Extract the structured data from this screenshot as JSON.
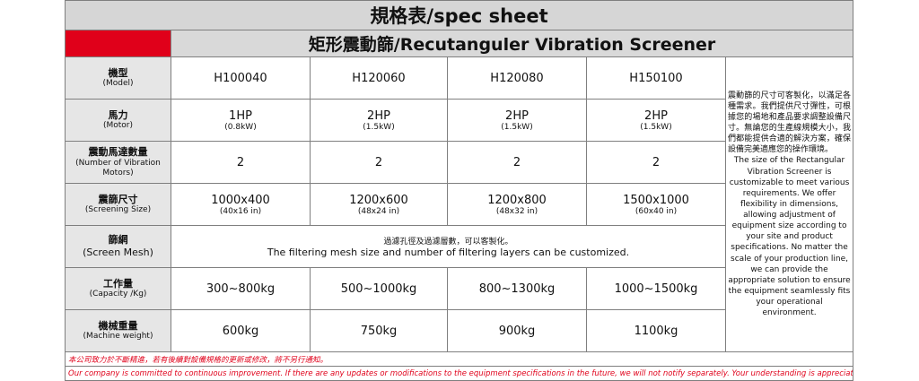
{
  "header": {
    "title": "規格表/spec sheet",
    "subtitle": "矩形震動篩/Recutanguler Vibration Screener"
  },
  "rows": [
    {
      "label": "機型",
      "label_en": "(Model)",
      "cells": [
        {
          "main": "H100040"
        },
        {
          "main": "H120060"
        },
        {
          "main": "H120080"
        },
        {
          "main": "H150100"
        }
      ]
    },
    {
      "label": "馬力",
      "label_en": "(Motor)",
      "cells": [
        {
          "main": "1HP",
          "sub": "(0.8kW)"
        },
        {
          "main": "2HP",
          "sub": "(1.5kW)"
        },
        {
          "main": "2HP",
          "sub": "(1.5kW)"
        },
        {
          "main": "2HP",
          "sub": "(1.5kW)"
        }
      ]
    },
    {
      "label": "震動馬達數量",
      "label_en": "(Number of Vibration Motors)",
      "cells": [
        {
          "main": "2"
        },
        {
          "main": "2"
        },
        {
          "main": "2"
        },
        {
          "main": "2"
        }
      ]
    },
    {
      "label": "震篩尺寸",
      "label_en": "(Screening Size)",
      "cells": [
        {
          "main": "1000x400",
          "sub": "(40x16 in)"
        },
        {
          "main": "1200x600",
          "sub": "(48x24 in)"
        },
        {
          "main": "1200x800",
          "sub": "(48x32 in)"
        },
        {
          "main": "1500x1000",
          "sub": "(60x40 in)"
        }
      ]
    },
    {
      "label": "篩網",
      "label_en": "(Screen Mesh)",
      "merged": {
        "main": "過濾孔徑及過濾層數，可以客製化。",
        "sub": "The filtering mesh size and number of filtering layers can be customized."
      }
    },
    {
      "label": "工作量",
      "label_en": "(Capacity /Kg)",
      "cells": [
        {
          "main": "300~800kg"
        },
        {
          "main": "500~1000kg"
        },
        {
          "main": "800~1300kg"
        },
        {
          "main": "1000~1500kg"
        }
      ]
    },
    {
      "label": "機械重量",
      "label_en": "(Machine weight)",
      "cells": [
        {
          "main": "600kg"
        },
        {
          "main": "750kg"
        },
        {
          "main": "900kg"
        },
        {
          "main": "1100kg"
        }
      ]
    }
  ],
  "note": {
    "zh": "震動篩的尺寸可客製化，以滿足各種需求。我們提供尺寸彈性，可根據您的場地和產品要求調整設備尺寸。無論您的生產線規模大小，我們都能提供合適的解決方案，確保設備完美適應您的操作環境。",
    "en": "The size of the Rectangular Vibration Screener is customizable to meet various requirements. We offer flexibility in dimensions, allowing adjustment of equipment size according to your site and product specifications. No matter the scale of your production line, we can provide the appropriate solution to ensure the equipment seamlessly fits your operational environment."
  },
  "footer": [
    "本公司致力於不斷精進，若有後續對設備規格的更新或修改，將不另行通知。",
    "Our company is committed to continuous improvement. If there are any updates or modifications to the equipment specifications in the future, we will not notify separately. Your understanding is appreciated."
  ]
}
